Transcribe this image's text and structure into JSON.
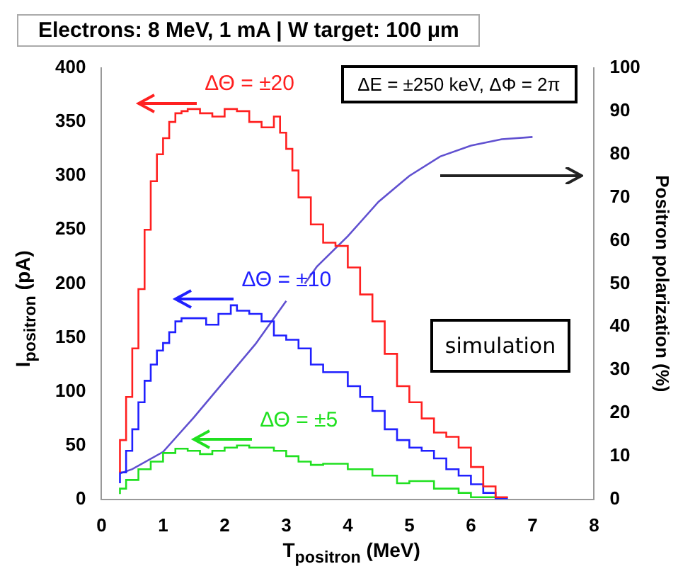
{
  "chart_data": {
    "type": "step",
    "title": "Electrons: 8 MeV, 1 mA | W target: 100 μm",
    "xlabel": "T$_{positron}$ (MeV)",
    "ylabel": "I$_{positron}$ (pA)",
    "y2label": "Positron polarization (%)",
    "annotations": [
      "ΔE = ±250 keV, ΔΦ = 2π",
      "simulation"
    ],
    "xlim": [
      0,
      8
    ],
    "xticks": [
      0,
      1,
      2,
      3,
      4,
      5,
      6,
      7,
      8
    ],
    "ylim": [
      0,
      400
    ],
    "yticks": [
      0,
      50,
      100,
      150,
      200,
      250,
      300,
      350,
      400
    ],
    "y2lim": [
      0,
      100
    ],
    "y2ticks": [
      0,
      10,
      20,
      30,
      40,
      50,
      60,
      70,
      80,
      90,
      100
    ],
    "grid": false,
    "legend": false,
    "series": [
      {
        "name": "ΔΘ = ±20",
        "color": "#ff2020",
        "x": [
          0.3,
          0.4,
          0.5,
          0.6,
          0.7,
          0.8,
          0.9,
          1.0,
          1.1,
          1.2,
          1.3,
          1.4,
          1.6,
          1.8,
          2.0,
          2.2,
          2.4,
          2.6,
          2.8,
          2.9,
          3.0,
          3.1,
          3.2,
          3.4,
          3.6,
          3.8,
          4.0,
          4.2,
          4.4,
          4.6,
          4.8,
          5.0,
          5.2,
          5.4,
          5.6,
          5.8,
          6.0,
          6.2,
          6.4,
          6.6
        ],
        "values": [
          25,
          55,
          95,
          140,
          195,
          250,
          295,
          320,
          335,
          350,
          358,
          360,
          362,
          358,
          355,
          362,
          360,
          350,
          345,
          355,
          340,
          325,
          305,
          280,
          255,
          238,
          235,
          215,
          190,
          165,
          135,
          105,
          90,
          75,
          62,
          58,
          48,
          30,
          12,
          2
        ]
      },
      {
        "name": "ΔΘ = ±10",
        "color": "#2020ff",
        "x": [
          0.3,
          0.4,
          0.5,
          0.6,
          0.7,
          0.8,
          0.9,
          1.0,
          1.1,
          1.2,
          1.3,
          1.5,
          1.7,
          1.9,
          2.1,
          2.2,
          2.4,
          2.6,
          2.8,
          3.0,
          3.2,
          3.4,
          3.6,
          3.8,
          4.0,
          4.2,
          4.4,
          4.6,
          4.8,
          5.0,
          5.2,
          5.4,
          5.6,
          5.8,
          6.0,
          6.2,
          6.4,
          6.6
        ],
        "values": [
          15,
          25,
          45,
          65,
          90,
          110,
          125,
          138,
          145,
          155,
          165,
          168,
          168,
          162,
          172,
          180,
          175,
          172,
          165,
          152,
          148,
          140,
          125,
          118,
          118,
          105,
          95,
          82,
          65,
          55,
          48,
          45,
          38,
          28,
          22,
          14,
          6,
          1
        ]
      },
      {
        "name": "ΔΘ = ±5",
        "color": "#20e020",
        "x": [
          0.3,
          0.4,
          0.6,
          0.8,
          1.0,
          1.2,
          1.4,
          1.6,
          1.8,
          2.0,
          2.2,
          2.4,
          2.6,
          2.8,
          3.0,
          3.2,
          3.4,
          3.6,
          3.8,
          4.0,
          4.4,
          4.8,
          5.0,
          5.4,
          5.8,
          6.0,
          6.4
        ],
        "values": [
          5,
          10,
          18,
          28,
          35,
          43,
          47,
          45,
          42,
          45,
          48,
          50,
          48,
          48,
          45,
          40,
          35,
          32,
          33,
          33,
          28,
          22,
          15,
          17,
          10,
          6,
          2
        ]
      },
      {
        "type": "line",
        "axis": "y2",
        "color": "#6050d0",
        "x": [
          0.3,
          0.5,
          1.0,
          1.5,
          2.0,
          2.5,
          3.0,
          3.15,
          3.3,
          3.5,
          4.0,
          4.5,
          5.0,
          5.5,
          6.0,
          6.5,
          7.0
        ],
        "values": [
          6,
          7,
          11,
          19,
          27.5,
          36,
          46,
          null,
          50,
          54,
          61,
          69,
          75,
          79.5,
          82,
          83.5,
          84
        ]
      }
    ]
  }
}
